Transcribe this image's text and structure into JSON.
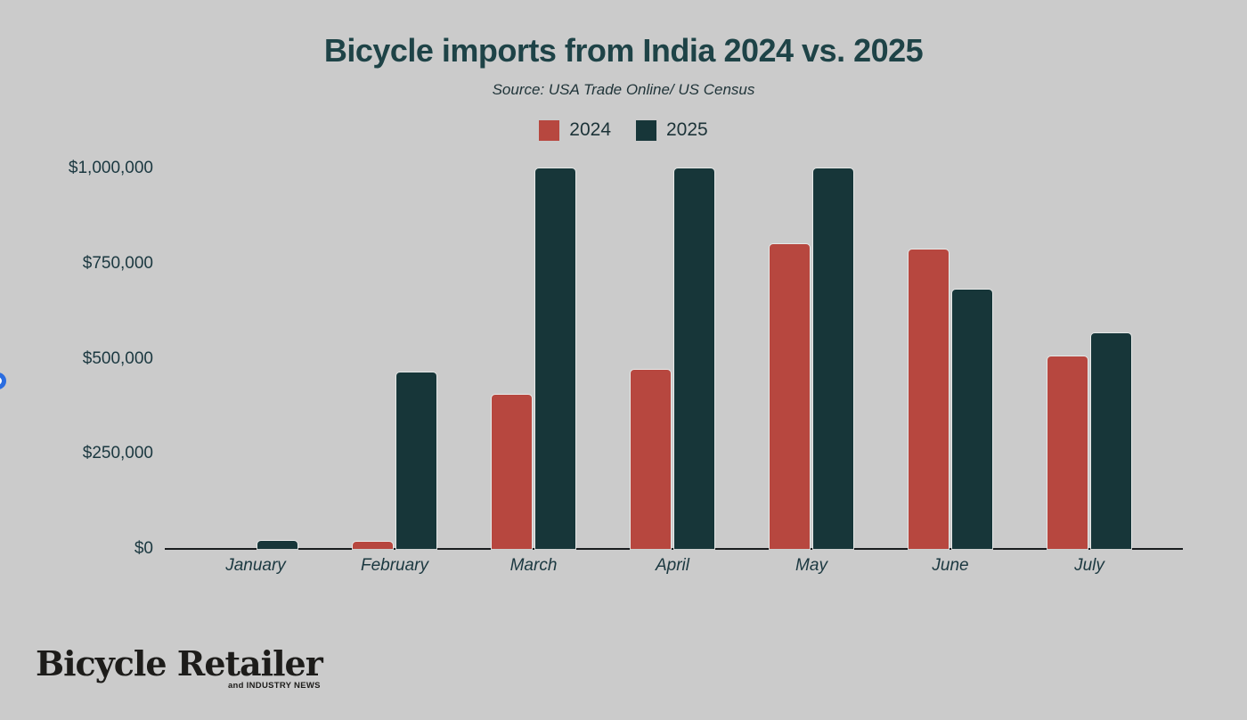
{
  "page": {
    "background_color": "#cbcbcb"
  },
  "header": {
    "title": "Bicycle imports from India 2024 vs. 2025",
    "subtitle": "Source: USA Trade Online/ US Census",
    "title_color": "#1e4347"
  },
  "chart_data": {
    "type": "bar",
    "categories": [
      "January",
      "February",
      "March",
      "April",
      "May",
      "June",
      "July"
    ],
    "series": [
      {
        "name": "2024",
        "color": "#b7473f",
        "values": [
          0,
          18000,
          404000,
          470000,
          800000,
          787000,
          507000
        ]
      },
      {
        "name": "2025",
        "color": "#173639",
        "values": [
          20000,
          463000,
          1000000,
          1000000,
          1000000,
          681000,
          567000
        ]
      }
    ],
    "title": "Bicycle imports from India 2024 vs. 2025",
    "subtitle": "Source: USA Trade Online/ US Census",
    "xlabel": "",
    "ylabel": "",
    "ylim": [
      0,
      1000000
    ],
    "yticks": [
      {
        "value": 0,
        "label": "$0"
      },
      {
        "value": 250000,
        "label": "$250,000"
      },
      {
        "value": 500000,
        "label": "$500,000"
      },
      {
        "value": 750000,
        "label": "$750,000"
      },
      {
        "value": 1000000,
        "label": "$1,000,000"
      }
    ],
    "grid": false,
    "legend_position": "top-center"
  },
  "edge_widget": {
    "ring_color": "#2b6de0"
  },
  "footer": {
    "logo_main": "Bicycle Retailer",
    "logo_sub": "and INDUSTRY NEWS"
  }
}
